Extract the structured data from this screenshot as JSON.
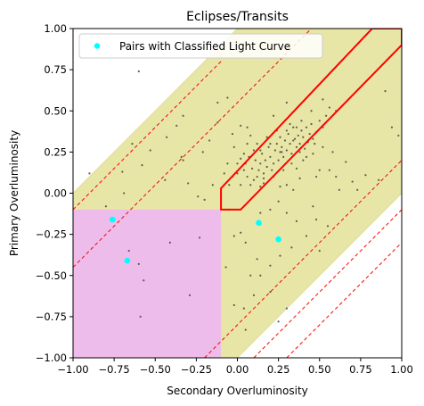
{
  "chart_data": {
    "type": "scatter",
    "title": "Eclipses/Transits",
    "xlabel": "Secondary Overluminosity",
    "ylabel": "Primary Overluminosity",
    "xlim": [
      -1.0,
      1.0
    ],
    "ylim": [
      -1.0,
      1.0
    ],
    "x_ticks": [
      "−1.00",
      "−0.75",
      "−0.50",
      "−0.25",
      "0.00",
      "0.25",
      "0.50",
      "0.75",
      "1.00"
    ],
    "y_ticks": [
      "−1.00",
      "−0.75",
      "−0.50",
      "−0.25",
      "0.00",
      "0.25",
      "0.50",
      "0.75",
      "1.00"
    ],
    "grid": false,
    "legend": {
      "position": "upper-left",
      "entries": [
        "Pairs with Classified Light Curve"
      ]
    },
    "colors": {
      "yellow_band": "#e8e6a6",
      "magenta_region": "#eebcea",
      "red": "#ff0000",
      "cyan": "#00ffff",
      "points": "#444444"
    },
    "regions": {
      "yellow_band": [
        [
          -1.0,
          -0.5
        ],
        [
          -1.0,
          0.0
        ],
        [
          0.0,
          1.0
        ],
        [
          0.5,
          1.0
        ],
        [
          1.0,
          1.0
        ],
        [
          1.0,
          0.5
        ],
        [
          1.0,
          0.0
        ],
        [
          0.0,
          -1.0
        ],
        [
          -0.5,
          -1.0
        ]
      ],
      "magenta_region": [
        [
          -1.0,
          -1.0
        ],
        [
          -1.0,
          -0.1
        ],
        [
          -0.1,
          -0.1
        ],
        [
          -0.1,
          -1.0
        ]
      ],
      "red_polygon": [
        [
          -0.1,
          -0.1
        ],
        [
          -0.1,
          0.03
        ],
        [
          0.82,
          1.0
        ],
        [
          1.0,
          1.0
        ],
        [
          1.0,
          0.9
        ],
        [
          0.02,
          -0.1
        ]
      ],
      "dashed_lines": [
        [
          [
            -1.0,
            -0.1
          ],
          [
            -0.1,
            0.8
          ]
        ],
        [
          [
            -1.0,
            -0.45
          ],
          [
            0.45,
            1.0
          ]
        ],
        [
          [
            0.1,
            -1.0
          ],
          [
            1.0,
            -0.1
          ]
        ],
        [
          [
            -0.2,
            -1.0
          ],
          [
            1.0,
            0.2
          ]
        ],
        [
          [
            0.3,
            -1.0
          ],
          [
            1.0,
            -0.3
          ]
        ]
      ]
    },
    "series": [
      {
        "name": "Pairs with Classified Light Curve",
        "marker": "cyan",
        "points": [
          [
            -0.76,
            -0.16
          ],
          [
            -0.67,
            -0.41
          ],
          [
            0.13,
            -0.18
          ],
          [
            0.25,
            -0.28
          ]
        ]
      },
      {
        "marker": "small-dark",
        "points": [
          [
            -0.6,
            0.74
          ],
          [
            -0.33,
            0.47
          ],
          [
            -0.12,
            0.43
          ],
          [
            -0.43,
            0.34
          ],
          [
            -0.21,
            0.25
          ],
          [
            -0.34,
            0.22
          ],
          [
            -0.53,
            0.26
          ],
          [
            -0.58,
            0.17
          ],
          [
            -0.7,
            0.13
          ],
          [
            -0.9,
            0.12
          ],
          [
            -0.44,
            0.08
          ],
          [
            -0.3,
            0.06
          ],
          [
            -0.69,
            0.0
          ],
          [
            -0.24,
            -0.02
          ],
          [
            -0.2,
            -0.04
          ],
          [
            -0.8,
            -0.08
          ],
          [
            -0.66,
            -0.35
          ],
          [
            -0.41,
            -0.3
          ],
          [
            -0.6,
            -0.43
          ],
          [
            -0.57,
            -0.53
          ],
          [
            -0.59,
            -0.75
          ],
          [
            -0.29,
            -0.62
          ],
          [
            -0.23,
            -0.27
          ],
          [
            -0.33,
            0.2
          ],
          [
            -0.64,
            0.3
          ],
          [
            -0.17,
            0.32
          ],
          [
            -0.06,
            0.58
          ],
          [
            0.22,
            0.47
          ],
          [
            0.08,
            0.35
          ],
          [
            0.12,
            0.3
          ],
          [
            -0.02,
            0.28
          ],
          [
            0.27,
            0.25
          ],
          [
            0.02,
            0.21
          ],
          [
            -0.06,
            0.18
          ],
          [
            0.04,
            0.14
          ],
          [
            0.06,
            0.1
          ],
          [
            0.1,
            0.08
          ],
          [
            0.16,
            0.06
          ],
          [
            -0.05,
            0.05
          ],
          [
            0.0,
            0.12
          ],
          [
            0.02,
            0.05
          ],
          [
            0.05,
            0.18
          ],
          [
            0.07,
            0.22
          ],
          [
            0.09,
            0.15
          ],
          [
            0.11,
            0.2
          ],
          [
            0.12,
            0.1
          ],
          [
            0.13,
            0.14
          ],
          [
            0.14,
            0.18
          ],
          [
            0.15,
            0.24
          ],
          [
            0.16,
            0.12
          ],
          [
            0.17,
            0.2
          ],
          [
            0.18,
            0.16
          ],
          [
            0.19,
            0.28
          ],
          [
            0.2,
            0.22
          ],
          [
            0.21,
            0.14
          ],
          [
            0.22,
            0.18
          ],
          [
            0.23,
            0.26
          ],
          [
            0.24,
            0.3
          ],
          [
            0.25,
            0.2
          ],
          [
            0.26,
            0.34
          ],
          [
            0.27,
            0.28
          ],
          [
            0.28,
            0.22
          ],
          [
            0.29,
            0.32
          ],
          [
            0.3,
            0.26
          ],
          [
            0.31,
            0.36
          ],
          [
            0.32,
            0.3
          ],
          [
            0.33,
            0.24
          ],
          [
            0.34,
            0.4
          ],
          [
            0.35,
            0.33
          ],
          [
            0.36,
            0.28
          ],
          [
            0.37,
            0.35
          ],
          [
            0.38,
            0.3
          ],
          [
            0.39,
            0.38
          ],
          [
            0.4,
            0.34
          ],
          [
            0.41,
            0.27
          ],
          [
            0.42,
            0.4
          ],
          [
            0.43,
            0.31
          ],
          [
            0.44,
            0.36
          ],
          [
            0.45,
            0.42
          ],
          [
            0.46,
            0.33
          ],
          [
            0.47,
            0.3
          ],
          [
            0.48,
            0.37
          ],
          [
            0.5,
            0.44
          ],
          [
            0.52,
            0.4
          ],
          [
            0.54,
            0.47
          ],
          [
            0.56,
            0.52
          ],
          [
            0.6,
            0.5
          ],
          [
            0.3,
            0.38
          ],
          [
            0.32,
            0.42
          ],
          [
            0.34,
            0.32
          ],
          [
            0.36,
            0.4
          ],
          [
            0.38,
            0.25
          ],
          [
            0.26,
            0.25
          ],
          [
            0.24,
            0.38
          ],
          [
            0.2,
            0.3
          ],
          [
            0.18,
            0.34
          ],
          [
            0.14,
            0.26
          ],
          [
            0.1,
            0.26
          ],
          [
            0.06,
            0.3
          ],
          [
            0.04,
            0.24
          ],
          [
            0.0,
            0.18
          ],
          [
            -0.03,
            0.1
          ],
          [
            0.08,
            0.05
          ],
          [
            0.14,
            0.04
          ],
          [
            0.22,
            0.1
          ],
          [
            0.28,
            0.14
          ],
          [
            0.33,
            0.18
          ],
          [
            0.4,
            0.2
          ],
          [
            0.46,
            0.24
          ],
          [
            0.52,
            0.28
          ],
          [
            0.36,
            0.15
          ],
          [
            0.3,
            0.05
          ],
          [
            0.38,
            0.09
          ],
          [
            0.48,
            0.1
          ],
          [
            0.42,
            0.22
          ],
          [
            0.56,
            0.14
          ],
          [
            0.6,
            0.1
          ],
          [
            0.7,
            0.07
          ],
          [
            0.73,
            0.02
          ],
          [
            0.62,
            0.02
          ],
          [
            0.5,
            0.14
          ],
          [
            0.25,
            -0.05
          ],
          [
            0.2,
            -0.1
          ],
          [
            0.14,
            -0.12
          ],
          [
            0.3,
            -0.12
          ],
          [
            0.36,
            -0.17
          ],
          [
            0.46,
            -0.08
          ],
          [
            0.55,
            -0.2
          ],
          [
            0.48,
            -0.16
          ],
          [
            0.42,
            -0.26
          ],
          [
            0.5,
            -0.35
          ],
          [
            0.33,
            -0.33
          ],
          [
            0.26,
            -0.38
          ],
          [
            0.2,
            -0.44
          ],
          [
            0.12,
            -0.4
          ],
          [
            0.05,
            -0.3
          ],
          [
            0.02,
            -0.24
          ],
          [
            -0.02,
            -0.26
          ],
          [
            -0.07,
            -0.45
          ],
          [
            0.08,
            -0.5
          ],
          [
            0.14,
            -0.5
          ],
          [
            0.2,
            -0.6
          ],
          [
            0.1,
            -0.62
          ],
          [
            0.04,
            -0.7
          ],
          [
            -0.02,
            -0.68
          ],
          [
            0.05,
            -0.83
          ],
          [
            0.25,
            -0.78
          ],
          [
            0.3,
            -0.7
          ],
          [
            -0.05,
            -0.1
          ],
          [
            -0.08,
            0.12
          ],
          [
            -0.15,
            0.05
          ],
          [
            -0.03,
            0.36
          ],
          [
            0.02,
            0.41
          ],
          [
            -0.37,
            0.41
          ],
          [
            -0.12,
            0.55
          ],
          [
            0.58,
            0.25
          ],
          [
            0.66,
            0.19
          ],
          [
            0.78,
            0.11
          ],
          [
            0.86,
            0.08
          ],
          [
            0.98,
            0.35
          ],
          [
            0.9,
            0.62
          ],
          [
            0.94,
            0.4
          ],
          [
            0.52,
            0.57
          ],
          [
            0.3,
            0.55
          ],
          [
            0.45,
            0.5
          ],
          [
            0.06,
            0.4
          ],
          [
            0.39,
            0.44
          ],
          [
            0.16,
            0.09
          ],
          [
            0.26,
            0.04
          ],
          [
            0.34,
            0.02
          ]
        ]
      }
    ]
  }
}
